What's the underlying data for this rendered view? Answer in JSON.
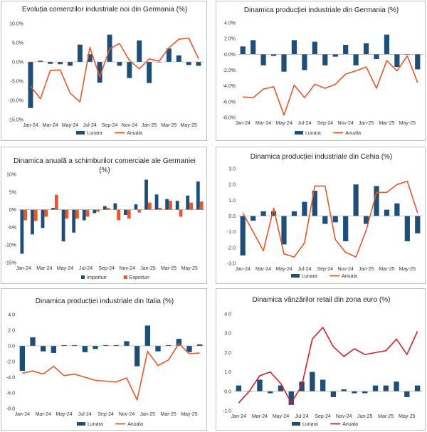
{
  "colors": {
    "monthly": "#1f4e79",
    "annual": "#e8562a",
    "annual_retail": "#d42027",
    "imports": "#1f4e79",
    "exports": "#e8562a"
  },
  "chart_data": [
    {
      "type": "bar+line",
      "title": "Evoluția comenzilor industriale noi din Germania (%)",
      "x": [
        "Jan-24",
        "Feb-24",
        "Mar-24",
        "Apr-24",
        "May-24",
        "Jun-24",
        "Jul-24",
        "Aug-24",
        "Sep-24",
        "Oct-24",
        "Nov-24",
        "Dec-24",
        "Jan-25",
        "Feb-25",
        "Mar-25",
        "Apr-25",
        "May-25",
        "Jun-25"
      ],
      "xtick_labels": [
        "Jan-24",
        "Mar-24",
        "May-24",
        "Jul-24",
        "Sep-24",
        "Nov-24",
        "Jan-25",
        "Mar-25",
        "May-25"
      ],
      "yticks": [
        "-15.0%",
        "-10.0%",
        "-5.0%",
        "0.0%",
        "5.0%",
        "10.0%"
      ],
      "ylim": [
        -15,
        10
      ],
      "series": [
        {
          "name": "Lunara",
          "kind": "bar",
          "values": [
            -12.0,
            0.3,
            -0.5,
            -0.6,
            -1.0,
            4.5,
            2.0,
            -5.4,
            7.1,
            -1.0,
            -4.2,
            5.6,
            -5.5,
            0.0,
            3.5,
            1.7,
            -0.8,
            -1.0
          ]
        },
        {
          "name": "Anuala",
          "kind": "line",
          "values": [
            -6.3,
            -9.6,
            -2.2,
            -2.1,
            -8.1,
            -10.4,
            3.8,
            -3.9,
            3.4,
            4.8,
            0.4,
            -1.8,
            0.8,
            0.2,
            3.7,
            5.9,
            6.2,
            0.8
          ]
        }
      ]
    },
    {
      "type": "bar+line",
      "title": "Dinamica producției industriale din Germania (%)",
      "x": [
        "Jan-24",
        "Feb-24",
        "Mar-24",
        "Apr-24",
        "May-24",
        "Jun-24",
        "Jul-24",
        "Aug-24",
        "Sep-24",
        "Oct-24",
        "Nov-24",
        "Dec-24",
        "Jan-25",
        "Feb-25",
        "Mar-25",
        "Apr-25",
        "May-25",
        "Jun-25"
      ],
      "xtick_labels": [
        "Jan-24",
        "Mar-24",
        "May-24",
        "Jul-24",
        "Sep-24",
        "Nov-24",
        "Jan-25",
        "Mar-25",
        "May-25"
      ],
      "yticks": [
        "-8.0%",
        "-6.0%",
        "-4.0%",
        "-2.0%",
        "0.0%",
        "2.0%",
        "4.0%"
      ],
      "ylim": [
        -8,
        4
      ],
      "series": [
        {
          "name": "Lunara",
          "kind": "bar",
          "values": [
            1.0,
            1.8,
            -1.4,
            -0.2,
            -2.2,
            1.8,
            -2.0,
            1.6,
            -1.4,
            -0.3,
            1.2,
            -1.4,
            1.4,
            -0.6,
            2.5,
            -1.6,
            0.0,
            -1.9
          ]
        },
        {
          "name": "Anuala",
          "kind": "line",
          "values": [
            -5.4,
            -5.5,
            -4.4,
            -4.1,
            -7.7,
            -3.9,
            -5.5,
            -3.8,
            -4.3,
            -3.8,
            -2.5,
            -2.1,
            -1.6,
            -4.3,
            -0.8,
            -2.1,
            -0.2,
            -3.6
          ]
        }
      ]
    },
    {
      "type": "grouped-bar",
      "title": "Dinamica anuală a schimburilor comerciale ale Germaniei (%)",
      "x": [
        "Jan-24",
        "Feb-24",
        "Mar-24",
        "Apr-24",
        "May-24",
        "Jun-24",
        "Jul-24",
        "Aug-24",
        "Sep-24",
        "Oct-24",
        "Nov-24",
        "Dec-24",
        "Jan-25",
        "Feb-25",
        "Mar-25",
        "Apr-25",
        "May-25",
        "Jun-25"
      ],
      "xtick_labels": [
        "Jan-24",
        "Mar-24",
        "May-24",
        "Jul-24",
        "Sep-24",
        "Nov-24",
        "Jan-25",
        "Mar-25",
        "May-25"
      ],
      "yticks": [
        "-15%",
        "-10%",
        "-5%",
        "0%",
        "5%",
        "10%"
      ],
      "ylim": [
        -15,
        10
      ],
      "series": [
        {
          "name": "Importuri",
          "values": [
            -12.5,
            -7.0,
            -5.2,
            0.5,
            -9.0,
            -6.5,
            -3.0,
            -1.0,
            1.0,
            1.8,
            -1.5,
            1.5,
            8.5,
            4.3,
            3.0,
            2.5,
            4.0,
            8.0
          ]
        },
        {
          "name": "Exporturi",
          "values": [
            -3.0,
            -3.2,
            -2.0,
            4.2,
            -2.5,
            -2.5,
            -2.0,
            -0.6,
            0.5,
            -3.0,
            -2.5,
            -0.8,
            2.0,
            0.5,
            2.5,
            -2.0,
            2.0,
            2.3
          ]
        }
      ]
    },
    {
      "type": "bar+line",
      "title": "Dinamica producției industriale din Cehia (%)",
      "x": [
        "Jan-24",
        "Feb-24",
        "Mar-24",
        "Apr-24",
        "May-24",
        "Jun-24",
        "Jul-24",
        "Aug-24",
        "Sep-24",
        "Oct-24",
        "Nov-24",
        "Dec-24",
        "Jan-25",
        "Feb-25",
        "Mar-25",
        "Apr-25",
        "May-25",
        "Jun-25"
      ],
      "xtick_labels": [
        "Jan-24",
        "Mar-24",
        "May-24",
        "Jul-24",
        "Sep-24",
        "Nov-24",
        "Jan-25",
        "Mar-25",
        "May-25"
      ],
      "yticks": [
        "-3.0",
        "-2.0",
        "-1.0",
        "0.0",
        "1.0",
        "2.0",
        "3.0"
      ],
      "ylim": [
        -3,
        3
      ],
      "series": [
        {
          "name": "Lunara",
          "kind": "bar",
          "values": [
            -2.5,
            -0.3,
            0.3,
            0.3,
            -1.8,
            0.3,
            0.9,
            1.6,
            -0.5,
            -0.4,
            -1.6,
            2.0,
            -0.5,
            1.9,
            0.4,
            0.8,
            -1.6,
            -1.1
          ]
        },
        {
          "name": "Anuala",
          "kind": "line",
          "values": [
            0.2,
            -1.0,
            -2.2,
            0.5,
            -2.4,
            -2.6,
            -1.7,
            1.9,
            1.9,
            -1.5,
            -2.3,
            -2.6,
            -0.9,
            1.5,
            1.5,
            2.0,
            2.2,
            0.2
          ]
        }
      ]
    },
    {
      "type": "bar+line",
      "title": "Dinamica producției industriale din Italia (%)",
      "x": [
        "Jan-24",
        "Feb-24",
        "Mar-24",
        "Apr-24",
        "May-24",
        "Jun-24",
        "Jul-24",
        "Aug-24",
        "Sep-24",
        "Oct-24",
        "Nov-24",
        "Dec-24",
        "Jan-25",
        "Feb-25",
        "Mar-25",
        "Apr-25",
        "May-25",
        "Jun-25"
      ],
      "xtick_labels": [
        "Jan-24",
        "Mar-24",
        "May-24",
        "Jul-24",
        "Sep-24",
        "Nov-24",
        "Jan-25",
        "Mar-25",
        "May-25"
      ],
      "yticks": [
        "-8.0",
        "-6.0",
        "-4.0",
        "-2.0",
        "0.0",
        "2.0",
        "4.0"
      ],
      "ylim": [
        -8,
        4
      ],
      "series": [
        {
          "name": "Lunara",
          "kind": "bar",
          "values": [
            -3.2,
            1.1,
            -0.7,
            -0.9,
            0.1,
            0.1,
            -0.8,
            -0.4,
            0.1,
            0.1,
            0.6,
            -2.6,
            2.6,
            -0.7,
            0.1,
            0.9,
            -0.8,
            0.2
          ]
        },
        {
          "name": "Anuala",
          "kind": "line",
          "values": [
            -3.5,
            -3.2,
            -3.6,
            -2.6,
            -3.8,
            -3.6,
            -4.0,
            -4.4,
            -4.5,
            -4.6,
            -4.1,
            -6.9,
            -0.7,
            -2.5,
            -1.8,
            0.3,
            -1.0,
            -0.9
          ]
        }
      ]
    },
    {
      "type": "bar+line",
      "title": "Dinamica vânzărilor retail din zona euro (%)",
      "x": [
        "Jan-24",
        "Feb-24",
        "Mar-24",
        "Apr-24",
        "May-24",
        "Jun-24",
        "Jul-24",
        "Aug-24",
        "Sep-24",
        "Oct-24",
        "Nov-24",
        "Dec-24",
        "Jan-25",
        "Feb-25",
        "Mar-25",
        "Apr-25",
        "May-25",
        "Jun-25"
      ],
      "xtick_labels": [
        "Jan-24",
        "Mar-24",
        "May-24",
        "Jul-24",
        "Sep-24",
        "Nov-24",
        "Jan-25",
        "Mar-25",
        "May-25"
      ],
      "yticks": [
        "-1.0",
        "0.0",
        "1.0",
        "2.0",
        "3.0",
        "4.0"
      ],
      "ylim": [
        -1,
        4
      ],
      "series": [
        {
          "name": "Lunara",
          "kind": "bar",
          "values": [
            0.3,
            0.0,
            0.6,
            -0.1,
            0.3,
            -0.7,
            0.5,
            1.0,
            0.6,
            -0.3,
            0.1,
            -0.1,
            -0.1,
            0.3,
            0.3,
            0.5,
            -0.3,
            0.3
          ]
        },
        {
          "name": "Anuala",
          "kind": "line",
          "values": [
            -0.6,
            0.0,
            0.8,
            1.0,
            0.4,
            -0.6,
            0.3,
            2.7,
            3.3,
            2.3,
            1.8,
            2.2,
            1.9,
            2.0,
            2.1,
            2.7,
            1.9,
            3.1
          ]
        }
      ]
    }
  ]
}
